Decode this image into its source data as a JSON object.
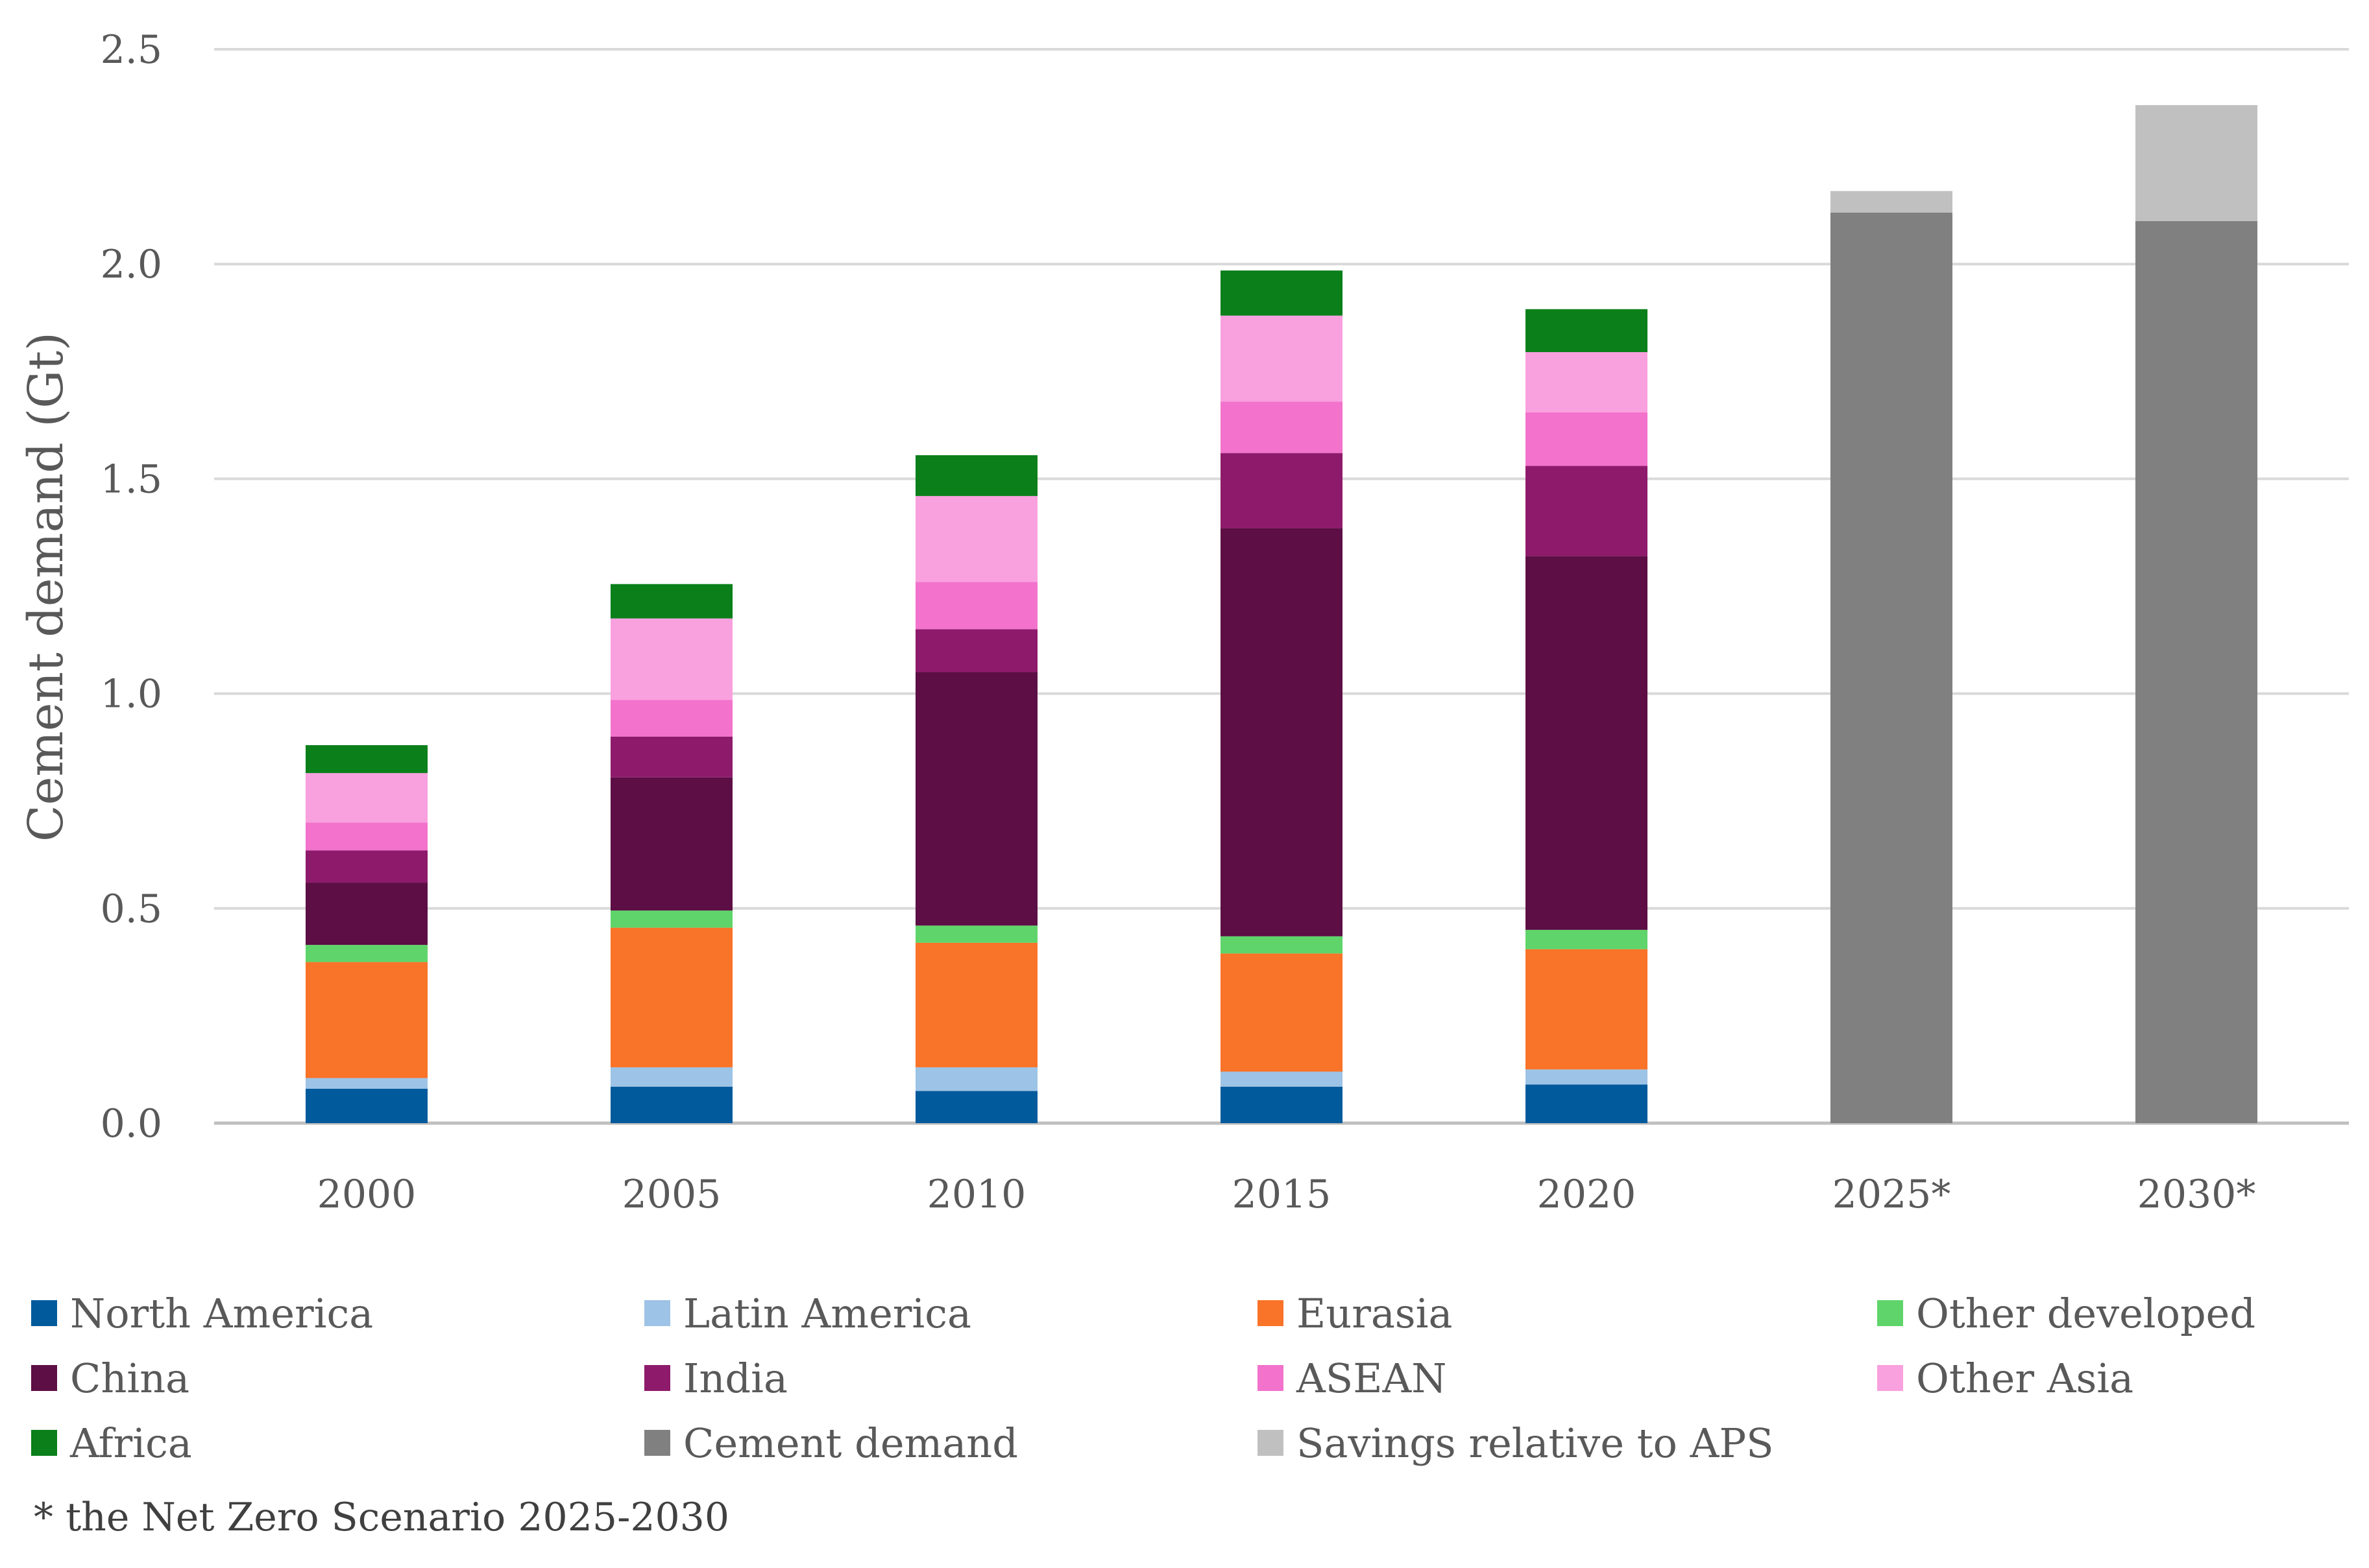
{
  "chart_data": {
    "type": "bar",
    "stacked": true,
    "categories": [
      "2000",
      "2005",
      "2010",
      "2015",
      "2020",
      "2025*",
      "2030*"
    ],
    "ylabel": "Cement demand (Gt)",
    "ylim": [
      0,
      2.5
    ],
    "yticks": [
      "0.0",
      "0.5",
      "1.0",
      "1.5",
      "2.0",
      "2.5"
    ],
    "grid": true,
    "legend_position": "bottom",
    "series": [
      {
        "name": "North America",
        "color": "#005A9C",
        "values": [
          0.08,
          0.085,
          0.075,
          0.085,
          0.09,
          0,
          0
        ]
      },
      {
        "name": "Latin America",
        "color": "#9DC3E6",
        "values": [
          0.025,
          0.045,
          0.055,
          0.035,
          0.035,
          0,
          0
        ]
      },
      {
        "name": "Eurasia",
        "color": "#F97328",
        "values": [
          0.27,
          0.325,
          0.29,
          0.275,
          0.28,
          0,
          0
        ]
      },
      {
        "name": "Other developed",
        "color": "#5FD46A",
        "values": [
          0.04,
          0.04,
          0.04,
          0.04,
          0.045,
          0,
          0
        ]
      },
      {
        "name": "China",
        "color": "#5C0E45",
        "values": [
          0.145,
          0.31,
          0.59,
          0.95,
          0.87,
          0,
          0
        ]
      },
      {
        "name": "India",
        "color": "#8E1A6B",
        "values": [
          0.075,
          0.095,
          0.1,
          0.175,
          0.21,
          0,
          0
        ]
      },
      {
        "name": "ASEAN",
        "color": "#F272CC",
        "values": [
          0.065,
          0.085,
          0.11,
          0.12,
          0.125,
          0,
          0
        ]
      },
      {
        "name": "Other Asia",
        "color": "#F9A0DE",
        "values": [
          0.115,
          0.19,
          0.2,
          0.2,
          0.14,
          0,
          0
        ]
      },
      {
        "name": "Africa",
        "color": "#0A7F1A",
        "values": [
          0.065,
          0.08,
          0.095,
          0.105,
          0.1,
          0,
          0
        ]
      },
      {
        "name": "Cement demand",
        "color": "#808080",
        "values": [
          0,
          0,
          0,
          0,
          0,
          2.12,
          2.1
        ]
      },
      {
        "name": "Savings relative to APS",
        "color": "#C0C0C0",
        "values": [
          0,
          0,
          0,
          0,
          0,
          0.05,
          0.27
        ]
      }
    ]
  },
  "footnote": "* the Net Zero Scenario 2025-2030"
}
